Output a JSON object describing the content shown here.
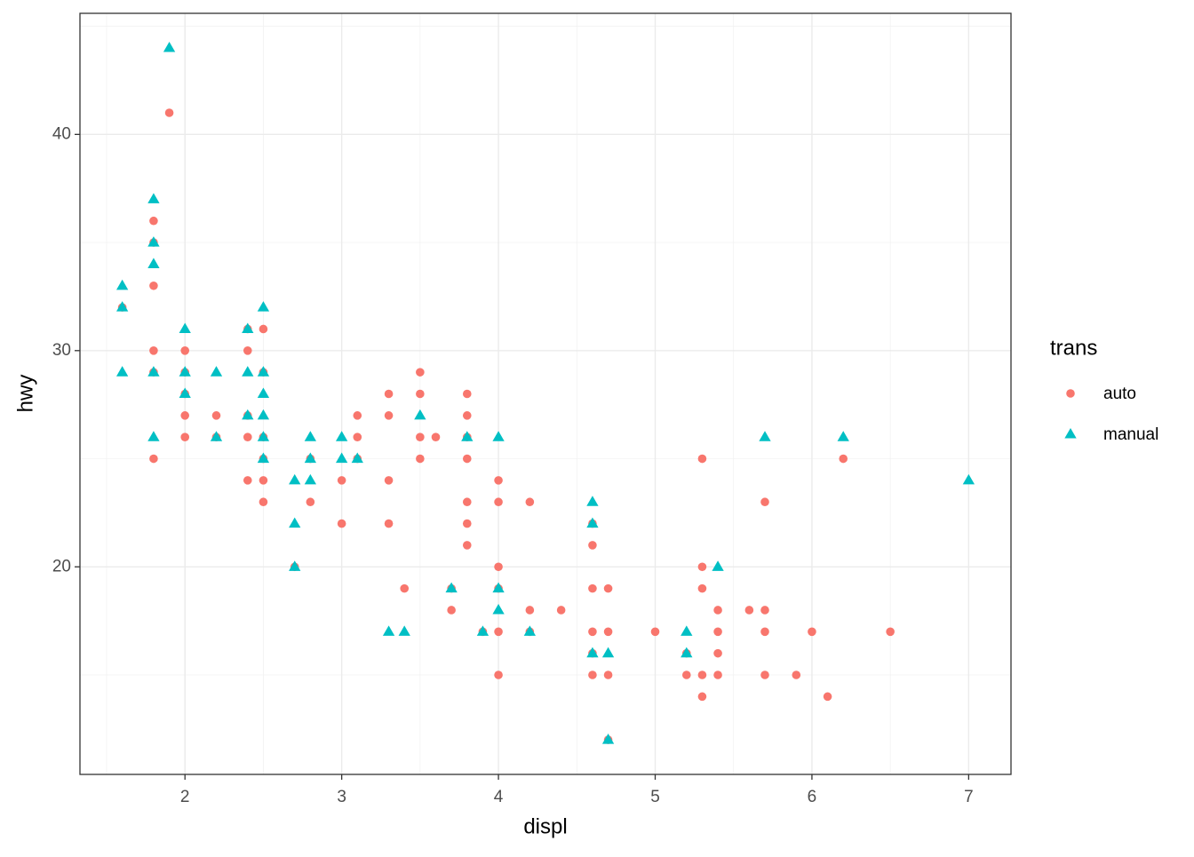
{
  "chart_data": {
    "type": "scatter",
    "x_label": "displ",
    "y_label": "hwy",
    "legend_title": "trans",
    "xlim": [
      1.33,
      7.27
    ],
    "ylim": [
      10.4,
      45.6
    ],
    "xticks": [
      2,
      3,
      4,
      5,
      6,
      7
    ],
    "yticks": [
      20,
      30,
      40
    ],
    "grid": true,
    "legend": "right",
    "series": [
      {
        "name": "auto",
        "color": "#F8766D",
        "shape": "circle",
        "x": [
          1.6,
          1.8,
          1.8,
          1.8,
          1.8,
          1.8,
          1.8,
          1.9,
          2.0,
          2.0,
          2.0,
          2.0,
          2.0,
          2.2,
          2.2,
          2.4,
          2.4,
          2.4,
          2.4,
          2.4,
          2.5,
          2.5,
          2.5,
          2.5,
          2.5,
          2.5,
          2.7,
          2.8,
          2.8,
          3.0,
          3.0,
          3.1,
          3.1,
          3.1,
          3.3,
          3.3,
          3.3,
          3.3,
          3.4,
          3.5,
          3.5,
          3.5,
          3.5,
          3.6,
          3.7,
          3.7,
          3.8,
          3.8,
          3.8,
          3.8,
          3.8,
          3.8,
          3.8,
          3.9,
          4.0,
          4.0,
          4.0,
          4.0,
          4.0,
          4.0,
          4.2,
          4.2,
          4.2,
          4.4,
          4.6,
          4.6,
          4.6,
          4.6,
          4.6,
          4.6,
          4.7,
          4.7,
          4.7,
          4.7,
          5.0,
          5.2,
          5.2,
          5.3,
          5.3,
          5.3,
          5.3,
          5.3,
          5.4,
          5.4,
          5.4,
          5.4,
          5.6,
          5.7,
          5.7,
          5.7,
          5.7,
          5.9,
          6.0,
          6.1,
          6.2,
          6.5
        ],
        "values": [
          32,
          36,
          35,
          33,
          30,
          29,
          25,
          41,
          30,
          29,
          28,
          27,
          26,
          27,
          26,
          31,
          30,
          27,
          26,
          24,
          31,
          29,
          26,
          25,
          24,
          23,
          20,
          25,
          23,
          24,
          22,
          27,
          26,
          25,
          28,
          27,
          24,
          22,
          19,
          29,
          28,
          26,
          25,
          26,
          19,
          18,
          28,
          27,
          26,
          25,
          23,
          22,
          21,
          17,
          24,
          23,
          20,
          19,
          17,
          15,
          23,
          18,
          17,
          18,
          22,
          21,
          19,
          17,
          16,
          15,
          19,
          17,
          15,
          12,
          17,
          16,
          15,
          25,
          20,
          19,
          15,
          14,
          18,
          17,
          16,
          15,
          18,
          23,
          18,
          17,
          15,
          15,
          17,
          14,
          25,
          17
        ]
      },
      {
        "name": "manual",
        "color": "#00BFC4",
        "shape": "triangle",
        "x": [
          1.6,
          1.6,
          1.6,
          1.8,
          1.8,
          1.8,
          1.8,
          1.8,
          1.9,
          2.0,
          2.0,
          2.0,
          2.2,
          2.2,
          2.4,
          2.4,
          2.4,
          2.5,
          2.5,
          2.5,
          2.5,
          2.5,
          2.5,
          2.7,
          2.7,
          2.7,
          2.8,
          2.8,
          2.8,
          3.0,
          3.0,
          3.1,
          3.3,
          3.4,
          3.5,
          3.7,
          3.8,
          3.9,
          4.0,
          4.0,
          4.0,
          4.2,
          4.6,
          4.6,
          4.6,
          4.7,
          4.7,
          5.2,
          5.2,
          5.4,
          5.7,
          6.2,
          7.0
        ],
        "values": [
          33,
          32,
          29,
          37,
          35,
          34,
          29,
          26,
          44,
          31,
          29,
          28,
          29,
          26,
          31,
          29,
          27,
          32,
          29,
          28,
          27,
          26,
          25,
          24,
          22,
          20,
          26,
          25,
          24,
          26,
          25,
          25,
          17,
          17,
          27,
          19,
          26,
          17,
          26,
          19,
          18,
          17,
          23,
          22,
          16,
          16,
          12,
          17,
          16,
          20,
          26,
          26,
          24
        ]
      }
    ]
  }
}
